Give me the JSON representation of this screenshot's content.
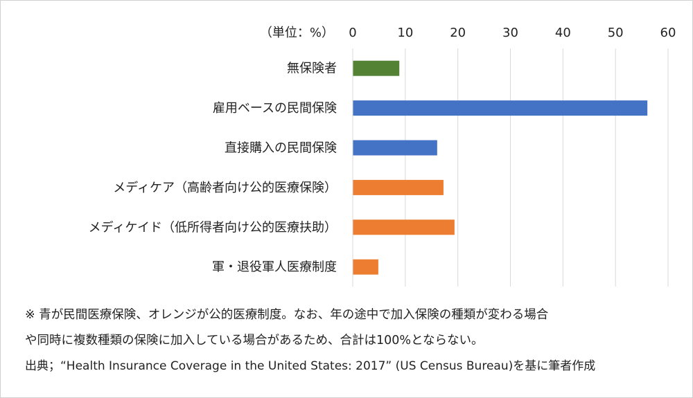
{
  "chart_data": {
    "type": "bar",
    "orientation": "horizontal",
    "unit_label": "（単位：%）",
    "categories": [
      "無保険者",
      "雇用ベースの民間保険",
      "直接購入の民間保険",
      "メディケア（高齢者向け公的医療保険）",
      "メディケイド（低所得者向け公的医療扶助）",
      "軍・退役軍人医療制度"
    ],
    "values": [
      8.8,
      56.0,
      16.0,
      17.2,
      19.3,
      4.8
    ],
    "colors": [
      "#548235",
      "#4472c4",
      "#4472c4",
      "#ed7d31",
      "#ed7d31",
      "#ed7d31"
    ],
    "xlim": [
      0,
      60
    ],
    "ticks": [
      0,
      10,
      20,
      30,
      40,
      50,
      60
    ],
    "xaxis_position": "top",
    "grid": true
  },
  "notes": {
    "line1": "※ 青が民間医療保険、オレンジが公的医療制度。なお、年の途中で加入保険の種類が変わる場合",
    "line2": "や同時に複数種類の保険に加入している場合があるため、合計は100%とならない。",
    "source": "出典；“Health Insurance Coverage in the United States: 2017” (US Census Bureau)を基に筆者作成"
  }
}
